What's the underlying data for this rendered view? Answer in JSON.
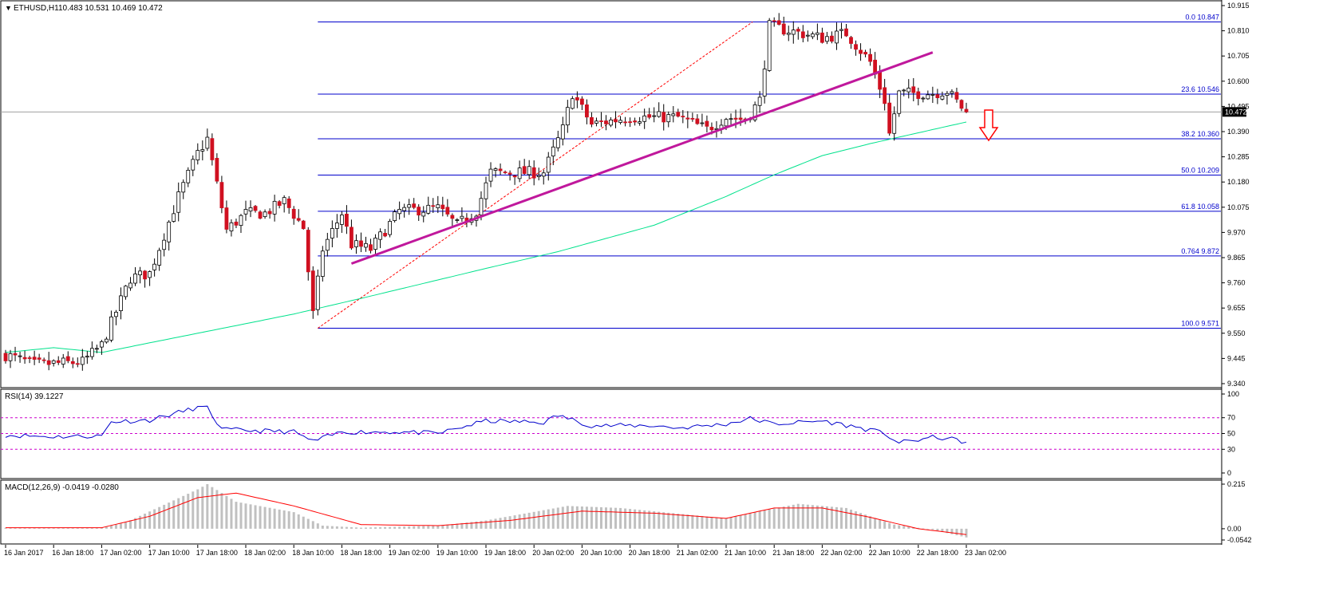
{
  "symbol_label": "ETHUSD,H1",
  "ohlc_header": "10.483 10.531 10.469 10.472",
  "colors": {
    "bull": "#ffffff",
    "bear": "#d01020",
    "wick": "#000000",
    "fib": "#0000cc",
    "ma": "#00e28c",
    "trend": "#c0189c",
    "fan": "#ff0000",
    "rsi": "#0000cc",
    "rsi_levels": "#cc00cc",
    "macd_hist": "#c0c0c0",
    "macd_signal": "#ff0000",
    "current_price_bg": "#000000",
    "arrow": "#ff0000"
  },
  "main_panel": {
    "y_ticks": [
      "10.915",
      "10.810",
      "10.705",
      "10.600",
      "10.495",
      "10.390",
      "10.285",
      "10.180",
      "10.075",
      "9.970",
      "9.865",
      "9.760",
      "9.655",
      "9.550",
      "9.445",
      "9.340"
    ],
    "current_price": "10.472",
    "fib_levels": [
      {
        "label": "0.0",
        "value": "10.847"
      },
      {
        "label": "23.6",
        "value": "10.546"
      },
      {
        "label": "38.2",
        "value": "10.360"
      },
      {
        "label": "50.0",
        "value": "10.209"
      },
      {
        "label": "61.8",
        "value": "10.058"
      },
      {
        "label": "0.764",
        "value": "9.872"
      },
      {
        "label": "100.0",
        "value": "9.571"
      }
    ]
  },
  "rsi_panel": {
    "label": "RSI(14) 39.1227",
    "y_ticks": [
      "100",
      "70",
      "50",
      "30",
      "0"
    ],
    "levels": [
      70,
      50,
      30
    ]
  },
  "macd_panel": {
    "label": "MACD(12,26,9) -0.0419 -0.0280",
    "y_ticks": [
      "0.215",
      "0.00",
      "-0.0542"
    ]
  },
  "x_labels": [
    "16 Jan 2017",
    "16 Jan 18:00",
    "17 Jan 02:00",
    "17 Jan 10:00",
    "17 Jan 18:00",
    "18 Jan 02:00",
    "18 Jan 10:00",
    "18 Jan 18:00",
    "19 Jan 02:00",
    "19 Jan 10:00",
    "19 Jan 18:00",
    "20 Jan 02:00",
    "20 Jan 10:00",
    "20 Jan 18:00",
    "21 Jan 02:00",
    "21 Jan 10:00",
    "21 Jan 18:00",
    "22 Jan 02:00",
    "22 Jan 10:00",
    "22 Jan 18:00",
    "23 Jan 02:00"
  ],
  "chart_data": {
    "type": "candlestick",
    "title": "ETHUSD,H1",
    "x_start": "16 Jan 2017",
    "bar_interval": "1h",
    "ylim": [
      9.34,
      10.915
    ],
    "close_anchors": [
      [
        0,
        9.46
      ],
      [
        6,
        9.42
      ],
      [
        16,
        9.43
      ],
      [
        20,
        9.5
      ],
      [
        26,
        9.78
      ],
      [
        30,
        9.8
      ],
      [
        36,
        10.12
      ],
      [
        40,
        10.3
      ],
      [
        42,
        10.36
      ],
      [
        46,
        9.98
      ],
      [
        50,
        10.05
      ],
      [
        54,
        10.05
      ],
      [
        58,
        10.1
      ],
      [
        62,
        9.99
      ],
      [
        64,
        9.63
      ],
      [
        66,
        9.9
      ],
      [
        70,
        10.05
      ],
      [
        72,
        9.92
      ],
      [
        76,
        9.9
      ],
      [
        82,
        10.06
      ],
      [
        90,
        10.07
      ],
      [
        94,
        10.0
      ],
      [
        98,
        10.06
      ],
      [
        101,
        10.22
      ],
      [
        112,
        10.22
      ],
      [
        116,
        10.4
      ],
      [
        118,
        10.55
      ],
      [
        122,
        10.42
      ],
      [
        130,
        10.45
      ],
      [
        140,
        10.45
      ],
      [
        146,
        10.4
      ],
      [
        150,
        10.45
      ],
      [
        154,
        10.44
      ],
      [
        157,
        10.52
      ],
      [
        159,
        10.83
      ],
      [
        161,
        10.82
      ],
      [
        170,
        10.78
      ],
      [
        175,
        10.8
      ],
      [
        180,
        10.68
      ],
      [
        183,
        10.52
      ],
      [
        184,
        10.38
      ],
      [
        186,
        10.55
      ],
      [
        193,
        10.55
      ],
      [
        196,
        10.56
      ],
      [
        200,
        10.47
      ]
    ],
    "fibonacci_retracement": {
      "high": 10.847,
      "low": 9.571,
      "levels": [
        {
          "ratio": "0.0",
          "price": 10.847
        },
        {
          "ratio": "23.6",
          "price": 10.546
        },
        {
          "ratio": "38.2",
          "price": 10.36
        },
        {
          "ratio": "50.0",
          "price": 10.209
        },
        {
          "ratio": "61.8",
          "price": 10.058
        },
        {
          "ratio": "0.764",
          "price": 9.872
        },
        {
          "ratio": "100.0",
          "price": 9.571
        }
      ]
    },
    "trendline": {
      "from": [
        72,
        9.84
      ],
      "to": [
        193,
        10.72
      ]
    },
    "moving_average": {
      "points": [
        [
          0,
          9.47
        ],
        [
          10,
          9.49
        ],
        [
          20,
          9.47
        ],
        [
          40,
          9.55
        ],
        [
          60,
          9.63
        ],
        [
          75,
          9.7
        ],
        [
          100,
          9.82
        ],
        [
          115,
          9.89
        ],
        [
          135,
          10.0
        ],
        [
          150,
          10.12
        ],
        [
          160,
          10.21
        ],
        [
          170,
          10.29
        ],
        [
          180,
          10.34
        ],
        [
          200,
          10.43
        ]
      ]
    },
    "rsi": {
      "value": 39.1227,
      "ylim": [
        0,
        100
      ],
      "points": [
        [
          0,
          48
        ],
        [
          10,
          46
        ],
        [
          20,
          47
        ],
        [
          22,
          65
        ],
        [
          30,
          67
        ],
        [
          40,
          83
        ],
        [
          42,
          82
        ],
        [
          45,
          55
        ],
        [
          60,
          52
        ],
        [
          64,
          40
        ],
        [
          70,
          52
        ],
        [
          82,
          52
        ],
        [
          90,
          50
        ],
        [
          100,
          66
        ],
        [
          112,
          64
        ],
        [
          115,
          73
        ],
        [
          122,
          60
        ],
        [
          135,
          60
        ],
        [
          140,
          57
        ],
        [
          150,
          62
        ],
        [
          155,
          69
        ],
        [
          160,
          62
        ],
        [
          170,
          66
        ],
        [
          178,
          57
        ],
        [
          183,
          50
        ],
        [
          186,
          38
        ],
        [
          193,
          45
        ],
        [
          196,
          44
        ],
        [
          200,
          39
        ]
      ]
    },
    "macd": {
      "main": -0.0419,
      "signal": -0.028,
      "ylim": [
        -0.0542,
        0.215
      ],
      "hist": [
        [
          0,
          0.005
        ],
        [
          20,
          0.005
        ],
        [
          25,
          0.03
        ],
        [
          40,
          0.19
        ],
        [
          42,
          0.215
        ],
        [
          48,
          0.13
        ],
        [
          60,
          0.08
        ],
        [
          66,
          0.015
        ],
        [
          74,
          0.005
        ],
        [
          90,
          0.015
        ],
        [
          100,
          0.04
        ],
        [
          117,
          0.11
        ],
        [
          128,
          0.1
        ],
        [
          150,
          0.05
        ],
        [
          156,
          0.08
        ],
        [
          165,
          0.12
        ],
        [
          175,
          0.1
        ],
        [
          185,
          0.02
        ],
        [
          193,
          -0.005
        ],
        [
          200,
          -0.042
        ]
      ],
      "signal_line": [
        [
          0,
          0.005
        ],
        [
          20,
          0.005
        ],
        [
          30,
          0.06
        ],
        [
          40,
          0.15
        ],
        [
          48,
          0.172
        ],
        [
          60,
          0.11
        ],
        [
          74,
          0.02
        ],
        [
          90,
          0.015
        ],
        [
          105,
          0.04
        ],
        [
          120,
          0.085
        ],
        [
          135,
          0.075
        ],
        [
          150,
          0.05
        ],
        [
          160,
          0.1
        ],
        [
          170,
          0.1
        ],
        [
          180,
          0.055
        ],
        [
          190,
          0.0
        ],
        [
          200,
          -0.028
        ]
      ]
    }
  }
}
